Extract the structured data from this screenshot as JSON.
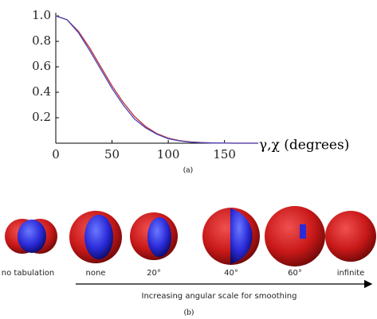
{
  "chart_data": {
    "type": "line",
    "x": [
      0,
      10,
      20,
      30,
      40,
      50,
      60,
      70,
      80,
      90,
      100,
      110,
      120,
      130,
      140,
      150,
      160,
      170,
      180
    ],
    "series": [
      {
        "color": "#c0303a",
        "values": [
          1.0,
          0.97,
          0.88,
          0.75,
          0.6,
          0.45,
          0.32,
          0.21,
          0.13,
          0.075,
          0.04,
          0.02,
          0.01,
          0.005,
          0.002,
          0.001,
          0,
          0,
          0
        ]
      },
      {
        "color": "#4a44b8",
        "values": [
          1.0,
          0.97,
          0.87,
          0.73,
          0.58,
          0.43,
          0.3,
          0.19,
          0.12,
          0.07,
          0.035,
          0.018,
          0.008,
          0.004,
          0.002,
          0.001,
          0,
          0,
          0
        ]
      }
    ],
    "xlim": [
      0,
      180
    ],
    "ylim": [
      0,
      1.0
    ],
    "xticks": [
      0,
      50,
      100,
      150
    ],
    "yticks": [
      {
        "value": 0.2,
        "label": "0.2"
      },
      {
        "value": 0.4,
        "label": "0.4"
      },
      {
        "value": 0.6,
        "label": "0.6"
      },
      {
        "value": 0.8,
        "label": "0.8"
      },
      {
        "value": 1.0,
        "label": "1.0"
      }
    ],
    "x_label": "γ,χ (degrees)",
    "caption": "(a)"
  },
  "panel_b": {
    "labels": [
      "no tabulation",
      "none",
      "20°",
      "40°",
      "60°",
      "infinite"
    ],
    "arrow_label": "Increasing angular scale for smoothing",
    "caption": "(b)"
  }
}
